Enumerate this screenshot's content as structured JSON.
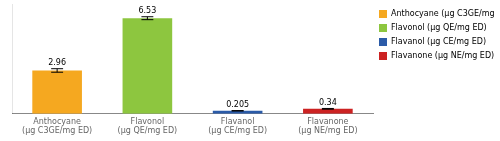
{
  "chart_data": {
    "type": "bar",
    "categories": [
      "Anthocyane (μg C3GE/mg ED)",
      "Flavonol (μg QE/mg ED)",
      "Flavanol (μg CE/mg ED)",
      "Flavanone (μg NE/mg ED)"
    ],
    "values": [
      2.96,
      6.53,
      0.205,
      0.34
    ],
    "errors": [
      0.12,
      0.1,
      0.012,
      0.025
    ],
    "colors": [
      "#F5A820",
      "#8DC63F",
      "#2B5BA8",
      "#CC2222"
    ],
    "ylim": [
      0,
      7.5
    ],
    "data_labels": true,
    "tick_labels": "x",
    "grid": false,
    "legend": "right"
  }
}
